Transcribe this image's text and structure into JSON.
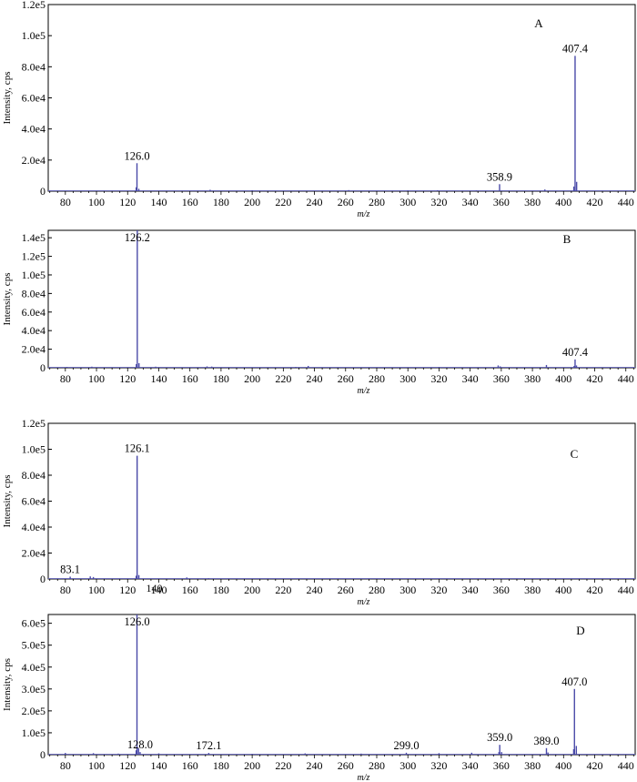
{
  "figure": {
    "ylabel": "Intensity, cps",
    "xlabel": "m/z"
  },
  "chart_data": [
    {
      "type": "bar",
      "panel": "A",
      "xlim": [
        69,
        446
      ],
      "ylim": [
        0,
        120000
      ],
      "xticks": [
        80,
        100,
        120,
        140,
        160,
        180,
        200,
        220,
        240,
        260,
        280,
        300,
        320,
        340,
        360,
        380,
        400,
        420,
        440
      ],
      "yticks": [
        0,
        20000,
        40000,
        60000,
        80000,
        100000,
        120000
      ],
      "ytick_labels": [
        "0",
        "2.0e4",
        "4.0e4",
        "6.0e4",
        "8.0e4",
        "1.0e5",
        "1.2e5"
      ],
      "xlabel": "m/z",
      "ylabel": "Intensity, cps",
      "peaks": [
        [
          126.0,
          18000
        ],
        [
          125.5,
          2500
        ],
        [
          127.2,
          1500
        ],
        [
          173,
          900
        ],
        [
          200,
          600
        ],
        [
          262,
          700
        ],
        [
          300,
          500
        ],
        [
          319,
          600
        ],
        [
          344,
          400
        ],
        [
          358.9,
          4500
        ],
        [
          388,
          1100
        ],
        [
          406.6,
          3000
        ],
        [
          407.4,
          87000
        ],
        [
          408.4,
          6000
        ]
      ],
      "labels": [
        {
          "x": 126.0,
          "y": 18000,
          "text": "126.0"
        },
        {
          "x": 358.9,
          "y": 4500,
          "text": "358.9"
        },
        {
          "x": 407.4,
          "y": 87000,
          "text": "407.4"
        }
      ]
    },
    {
      "type": "bar",
      "panel": "B",
      "xlim": [
        69,
        446
      ],
      "ylim": [
        0,
        148000
      ],
      "xticks": [
        80,
        100,
        120,
        140,
        160,
        180,
        200,
        220,
        240,
        260,
        280,
        300,
        320,
        340,
        360,
        380,
        400,
        420,
        440
      ],
      "yticks": [
        0,
        20000,
        40000,
        60000,
        80000,
        100000,
        120000,
        140000
      ],
      "ytick_labels": [
        "0",
        "2.0e4",
        "4.0e4",
        "6.0e4",
        "8.0e4",
        "1.0e5",
        "1.2e5",
        "1.4e5"
      ],
      "xlabel": "m/z",
      "ylabel": "Intensity, cps",
      "peaks": [
        [
          81,
          900
        ],
        [
          97,
          1200
        ],
        [
          125.6,
          4000
        ],
        [
          126.2,
          148000
        ],
        [
          127.3,
          5000
        ],
        [
          138,
          1200
        ],
        [
          171,
          1500
        ],
        [
          174,
          1300
        ],
        [
          228,
          900
        ],
        [
          236,
          2000
        ],
        [
          320,
          600
        ],
        [
          358,
          2500
        ],
        [
          359.3,
          1500
        ],
        [
          389,
          3000
        ],
        [
          406.8,
          2000
        ],
        [
          407.4,
          9000
        ],
        [
          408.3,
          2500
        ]
      ],
      "labels": [
        {
          "x": 126.2,
          "y": 148000,
          "text": "126.2"
        },
        {
          "x": 407.4,
          "y": 9000,
          "text": "407.4"
        }
      ]
    },
    {
      "type": "bar",
      "panel": "C",
      "xlim": [
        69,
        446
      ],
      "ylim": [
        0,
        120000
      ],
      "xticks": [
        80,
        100,
        120,
        140,
        160,
        180,
        200,
        220,
        240,
        260,
        280,
        300,
        320,
        340,
        360,
        380,
        400,
        420,
        440
      ],
      "yticks": [
        0,
        20000,
        40000,
        60000,
        80000,
        100000,
        120000
      ],
      "ytick_labels": [
        "0",
        "2.0e4",
        "4.0e4",
        "6.0e4",
        "8.0e4",
        "1.0e5",
        "1.2e5"
      ],
      "xlabel": "m/z",
      "ylabel": "Intensity, cps",
      "peaks": [
        [
          83.1,
          1800
        ],
        [
          96,
          2000
        ],
        [
          98,
          1500
        ],
        [
          125.5,
          2500
        ],
        [
          126.1,
          95000
        ],
        [
          127.2,
          3000
        ],
        [
          158,
          1200
        ],
        [
          172,
          500
        ]
      ],
      "labels": [
        {
          "x": 126.1,
          "y": 95000,
          "text": "126.1"
        },
        {
          "x": 83.1,
          "y": 1800,
          "text": "83.1"
        }
      ],
      "extra_tick_label": {
        "x": 140,
        "text": "140"
      }
    },
    {
      "type": "bar",
      "panel": "D",
      "xlim": [
        69,
        446
      ],
      "ylim": [
        0,
        640000
      ],
      "xticks": [
        80,
        100,
        120,
        140,
        160,
        180,
        200,
        220,
        240,
        260,
        280,
        300,
        320,
        340,
        360,
        380,
        400,
        420,
        440
      ],
      "yticks": [
        0,
        100000,
        200000,
        300000,
        400000,
        500000,
        600000
      ],
      "ytick_labels": [
        "0",
        "1.0e5",
        "2.0e5",
        "3.0e5",
        "4.0e5",
        "5.0e5",
        "6.0e5"
      ],
      "xlabel": "m/z",
      "ylabel": "Intensity, cps",
      "peaks": [
        [
          80,
          8000
        ],
        [
          98,
          7000
        ],
        [
          114,
          5000
        ],
        [
          125.5,
          20000
        ],
        [
          126.0,
          640000
        ],
        [
          127.0,
          30000
        ],
        [
          128.0,
          12000
        ],
        [
          140,
          6000
        ],
        [
          172.1,
          8000
        ],
        [
          200,
          4000
        ],
        [
          234,
          6000
        ],
        [
          270,
          5000
        ],
        [
          299.0,
          9000
        ],
        [
          320,
          7000
        ],
        [
          341,
          9000
        ],
        [
          358.5,
          12000
        ],
        [
          359.0,
          45000
        ],
        [
          360.2,
          12000
        ],
        [
          389.0,
          30000
        ],
        [
          390,
          10000
        ],
        [
          406.5,
          25000
        ],
        [
          407.0,
          300000
        ],
        [
          408.2,
          40000
        ]
      ],
      "labels": [
        {
          "x": 126.0,
          "y": 640000,
          "text": "126.0"
        },
        {
          "x": 128.0,
          "y": 12000,
          "text": "128.0"
        },
        {
          "x": 172.1,
          "y": 8000,
          "text": "172.1"
        },
        {
          "x": 299.0,
          "y": 9000,
          "text": "299.0"
        },
        {
          "x": 359.0,
          "y": 45000,
          "text": "359.0"
        },
        {
          "x": 389.0,
          "y": 30000,
          "text": "389.0"
        },
        {
          "x": 407.0,
          "y": 300000,
          "text": "407.0"
        }
      ]
    }
  ]
}
